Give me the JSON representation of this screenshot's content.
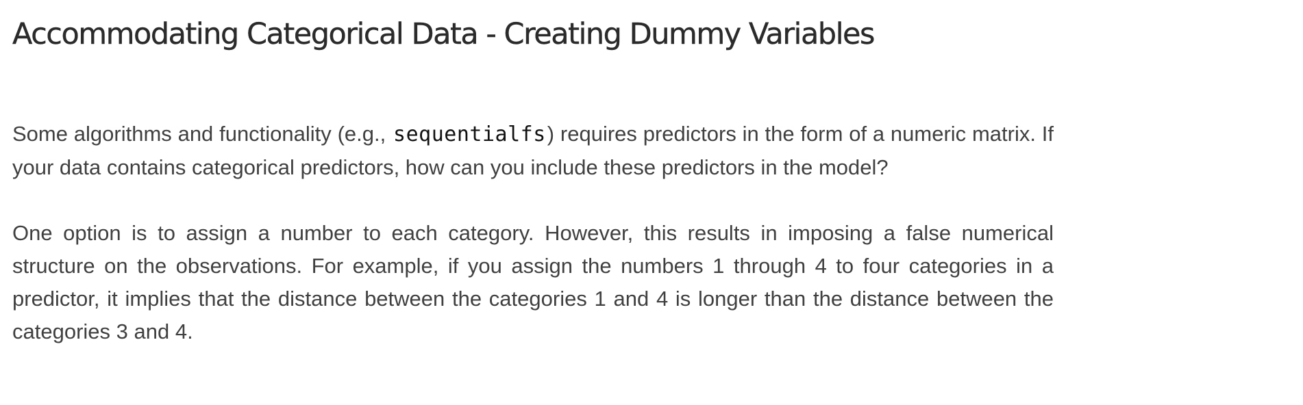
{
  "heading": "Accommodating Categorical Data - Creating Dummy Variables",
  "paragraph1": {
    "before_code": "Some algorithms and functionality (e.g., ",
    "code": "sequentialfs",
    "after_code": ") requires predictors in the form of a numeric matrix. If your data contains categorical predictors, how can you include these predictors in the model?"
  },
  "paragraph2": "One option is to assign a number to each category. However, this results in imposing a false numerical structure on the observations. For example, if you assign the numbers 1 through 4 to four categories in a predictor, it implies that the distance between the categories 1 and 4 is longer than the distance between the categories 3 and 4."
}
